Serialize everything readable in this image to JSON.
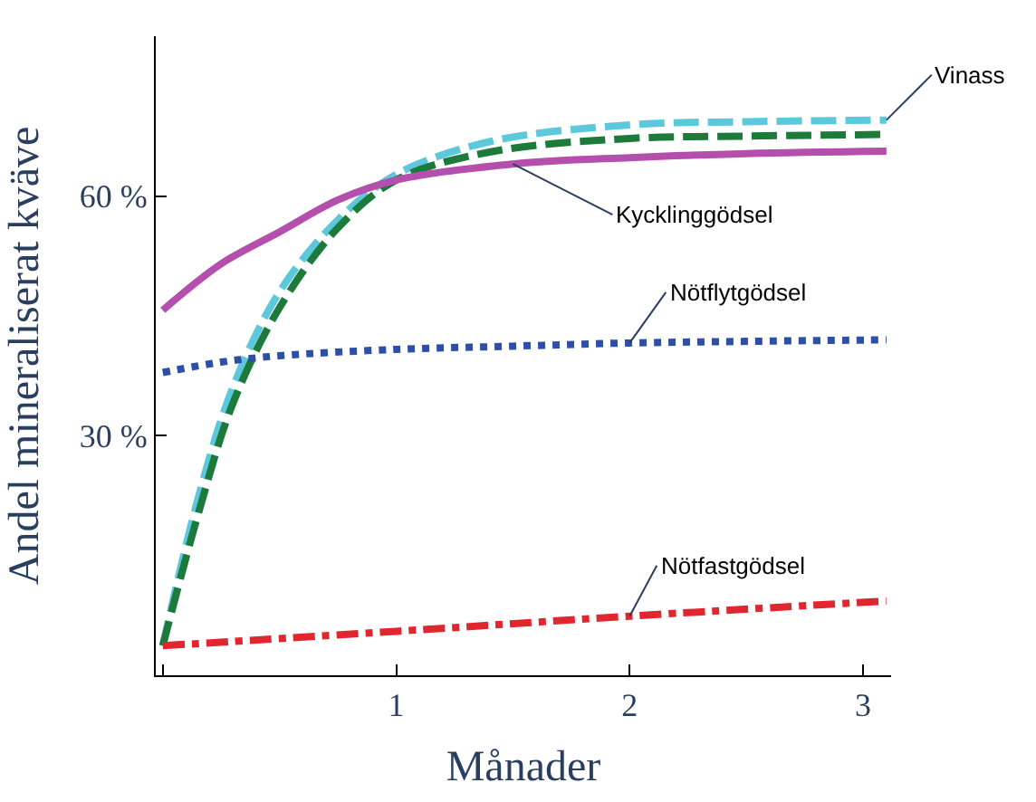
{
  "chart_data": {
    "type": "line",
    "xlabel": "Månader",
    "ylabel": "Andel mineraliserat kväve",
    "xlim": [
      -0.03,
      3.12
    ],
    "ylim": [
      0,
      80
    ],
    "xticks": [
      {
        "value": 0,
        "label": null
      },
      1,
      2,
      3
    ],
    "yticks": [
      {
        "value": 30,
        "label": "30 %"
      },
      {
        "value": 60,
        "label": "60 %"
      }
    ],
    "grid": false,
    "legend": false,
    "marker": "none",
    "series": [
      {
        "name": "Vinass",
        "color": "#5bc8dc",
        "line_style": "dashed",
        "x": [
          0,
          0.15,
          0.3,
          0.5,
          0.75,
          1,
          1.4,
          2,
          2.5,
          3.1
        ],
        "values": [
          3.7,
          22,
          36,
          48,
          57,
          62.7,
          66.8,
          68.9,
          69.3,
          69.5
        ]
      },
      {
        "color": "#1e7a3a",
        "line_style": "dashed",
        "x": [
          0,
          0.15,
          0.3,
          0.5,
          0.75,
          1,
          1.4,
          2,
          2.5,
          3.1
        ],
        "values": [
          3.7,
          20,
          34,
          46,
          56,
          62,
          65.5,
          67.2,
          67.5,
          67.7
        ]
      },
      {
        "name": "Kycklinggödsel",
        "color": "#b44fae",
        "line_style": "solid",
        "x": [
          0,
          0.25,
          0.5,
          0.75,
          1,
          1.5,
          2,
          2.5,
          3.1
        ],
        "values": [
          45.7,
          51.5,
          55.5,
          59.5,
          62,
          64,
          64.8,
          65.3,
          65.6
        ]
      },
      {
        "name": "Nötflytgödsel",
        "color": "#2e4fa8",
        "line_style": "dotted",
        "x": [
          0,
          0.25,
          0.5,
          1,
          1.5,
          2,
          2.5,
          3.1
        ],
        "values": [
          37.9,
          39.2,
          40,
          40.8,
          41.2,
          41.6,
          41.8,
          42
        ]
      },
      {
        "name": "Nötfastgödsel",
        "color": "#e0262e",
        "line_style": "dashdot",
        "x": [
          0,
          1,
          2,
          3.1
        ],
        "values": [
          3.7,
          5.5,
          7.4,
          9.3
        ]
      }
    ]
  }
}
